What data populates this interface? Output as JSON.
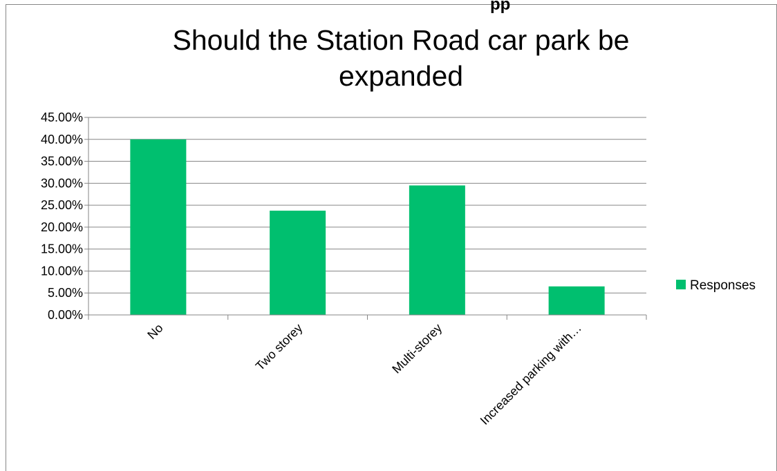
{
  "cut_off_heading": "pp",
  "chart_data": {
    "type": "bar",
    "title": "Should the Station Road car park be expanded",
    "title_lines": [
      "Should the Station Road car park be",
      "expanded"
    ],
    "categories": [
      "No",
      "Two storey",
      "Multi-storey",
      "Increased parking with…"
    ],
    "series": [
      {
        "name": "Responses",
        "values": [
          0.4,
          0.2375,
          0.295,
          0.065
        ],
        "color": "#00BF6F"
      }
    ],
    "ylim": [
      0,
      0.45
    ],
    "yticks": [
      0,
      0.05,
      0.1,
      0.15,
      0.2,
      0.25,
      0.3,
      0.35,
      0.4,
      0.45
    ],
    "ytick_labels": [
      "0.00%",
      "5.00%",
      "10.00%",
      "15.00%",
      "20.00%",
      "25.00%",
      "30.00%",
      "35.00%",
      "40.00%",
      "45.00%"
    ],
    "xlabel": "",
    "ylabel": "",
    "grid": true,
    "legend_position": "right",
    "axis_color": "#868686",
    "grid_color": "#868686"
  }
}
